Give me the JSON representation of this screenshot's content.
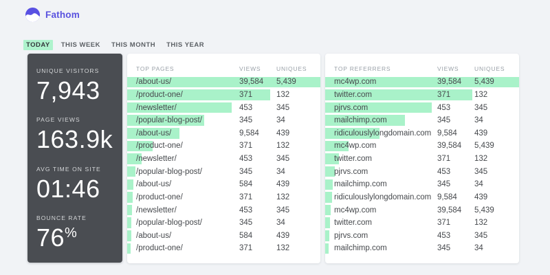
{
  "brand": {
    "name": "Fathom"
  },
  "colors": {
    "accent_purple": "#5952df",
    "mint_bar": "#a9f2c9",
    "tab_highlight": "#aef3cd",
    "panel_dark": "#4a4d52",
    "page_background": "#f1f3f6"
  },
  "tabs": [
    {
      "label": "TODAY",
      "active": true
    },
    {
      "label": "THIS WEEK",
      "active": false
    },
    {
      "label": "THIS MONTH",
      "active": false
    },
    {
      "label": "THIS YEAR",
      "active": false
    }
  ],
  "stats": [
    {
      "label": "UNIQUE VISITORS",
      "value": "7,943",
      "suffix": ""
    },
    {
      "label": "PAGE VIEWS",
      "value": "163.9k",
      "suffix": ""
    },
    {
      "label": "AVG TIME ON SITE",
      "value": "01:46",
      "suffix": ""
    },
    {
      "label": "BOUNCE RATE",
      "value": "76",
      "suffix": "%"
    }
  ],
  "tables": [
    {
      "id": "top-pages",
      "columns": [
        "TOP PAGES",
        "VIEWS",
        "UNIQUES"
      ],
      "rows": [
        {
          "name": "/about-us/",
          "views": "39,584",
          "uniques": "5,439",
          "bar_pct": 100
        },
        {
          "name": "/product-one/",
          "views": "371",
          "uniques": "132",
          "bar_pct": 74
        },
        {
          "name": "/newsletter/",
          "views": "453",
          "uniques": "345",
          "bar_pct": 54
        },
        {
          "name": "/popular-blog-post/",
          "views": "345",
          "uniques": "34",
          "bar_pct": 40
        },
        {
          "name": "/about-us/",
          "views": "9,584",
          "uniques": "439",
          "bar_pct": 27
        },
        {
          "name": "/product-one/",
          "views": "371",
          "uniques": "132",
          "bar_pct": 13
        },
        {
          "name": "/newsletter/",
          "views": "453",
          "uniques": "345",
          "bar_pct": 7.4
        },
        {
          "name": "/popular-blog-post/",
          "views": "345",
          "uniques": "34",
          "bar_pct": 4.2
        },
        {
          "name": "/about-us/",
          "views": "584",
          "uniques": "439",
          "bar_pct": 3.3
        },
        {
          "name": "/product-one/",
          "views": "371",
          "uniques": "132",
          "bar_pct": 3.0
        },
        {
          "name": "/newsletter/",
          "views": "453",
          "uniques": "345",
          "bar_pct": 2.6
        },
        {
          "name": "/popular-blog-post/",
          "views": "345",
          "uniques": "34",
          "bar_pct": 2.3
        },
        {
          "name": "/about-us/",
          "views": "584",
          "uniques": "439",
          "bar_pct": 2.0
        },
        {
          "name": "/product-one/",
          "views": "371",
          "uniques": "132",
          "bar_pct": 1.7
        }
      ]
    },
    {
      "id": "top-referrers",
      "columns": [
        "TOP REFERRERS",
        "VIEWS",
        "UNIQUES"
      ],
      "rows": [
        {
          "name": "mc4wp.com",
          "views": "39,584",
          "uniques": "5,439",
          "bar_pct": 100
        },
        {
          "name": "twitter.com",
          "views": "371",
          "uniques": "132",
          "bar_pct": 76
        },
        {
          "name": "pjrvs.com",
          "views": "453",
          "uniques": "345",
          "bar_pct": 55
        },
        {
          "name": "mailchimp.com",
          "views": "345",
          "uniques": "34",
          "bar_pct": 41
        },
        {
          "name": "ridiculouslylongdomain.com",
          "views": "9,584",
          "uniques": "439",
          "bar_pct": 28
        },
        {
          "name": "mc4wp.com",
          "views": "39,584",
          "uniques": "5,439",
          "bar_pct": 12
        },
        {
          "name": "twitter.com",
          "views": "371",
          "uniques": "132",
          "bar_pct": 7
        },
        {
          "name": "pjrvs.com",
          "views": "453",
          "uniques": "345",
          "bar_pct": 5
        },
        {
          "name": "mailchimp.com",
          "views": "345",
          "uniques": "34",
          "bar_pct": 4
        },
        {
          "name": "ridiculouslylongdomain.com",
          "views": "9,584",
          "uniques": "439",
          "bar_pct": 3.5
        },
        {
          "name": "mc4wp.com",
          "views": "39,584",
          "uniques": "5,439",
          "bar_pct": 3.0
        },
        {
          "name": "twitter.com",
          "views": "371",
          "uniques": "132",
          "bar_pct": 2.6
        },
        {
          "name": "pjrvs.com",
          "views": "453",
          "uniques": "345",
          "bar_pct": 2.1
        },
        {
          "name": "mailchimp.com",
          "views": "345",
          "uniques": "34",
          "bar_pct": 1.8
        }
      ]
    }
  ]
}
